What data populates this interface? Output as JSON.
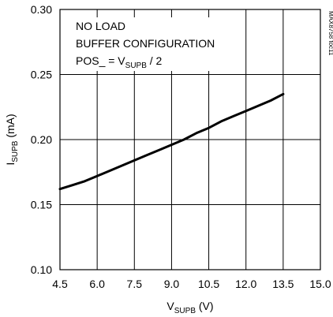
{
  "chart_data": {
    "type": "line",
    "xlabel": {
      "main": "V",
      "sub": "SUPB",
      "unit": " (V)"
    },
    "ylabel": {
      "main": "I",
      "sub": "SUPB",
      "unit": " (mA)"
    },
    "xlim": [
      4.5,
      15.0
    ],
    "ylim": [
      0.1,
      0.3
    ],
    "x_ticks": [
      "4.5",
      "6.0",
      "7.5",
      "9.0",
      "10.5",
      "12.0",
      "13.5",
      "15.0"
    ],
    "y_ticks": [
      "0.10",
      "0.15",
      "0.20",
      "0.25",
      "0.30"
    ],
    "grid": true,
    "annotations": {
      "line1": "NO LOAD",
      "line2": "BUFFER CONFIGURATION",
      "line3_pre": "POS_ = V",
      "line3_sub": "SUPB",
      "line3_post": " / 2"
    },
    "figure_id": "MAX8758 toc11",
    "series": [
      {
        "x": [
          4.5,
          5.0,
          5.5,
          6.0,
          6.5,
          7.0,
          7.5,
          8.0,
          8.5,
          9.0,
          9.5,
          10.0,
          10.5,
          11.0,
          11.5,
          12.0,
          12.5,
          13.0,
          13.5
        ],
        "y": [
          0.162,
          0.165,
          0.168,
          0.172,
          0.176,
          0.18,
          0.184,
          0.188,
          0.192,
          0.196,
          0.2,
          0.205,
          0.209,
          0.214,
          0.218,
          0.222,
          0.226,
          0.23,
          0.235
        ]
      }
    ]
  }
}
